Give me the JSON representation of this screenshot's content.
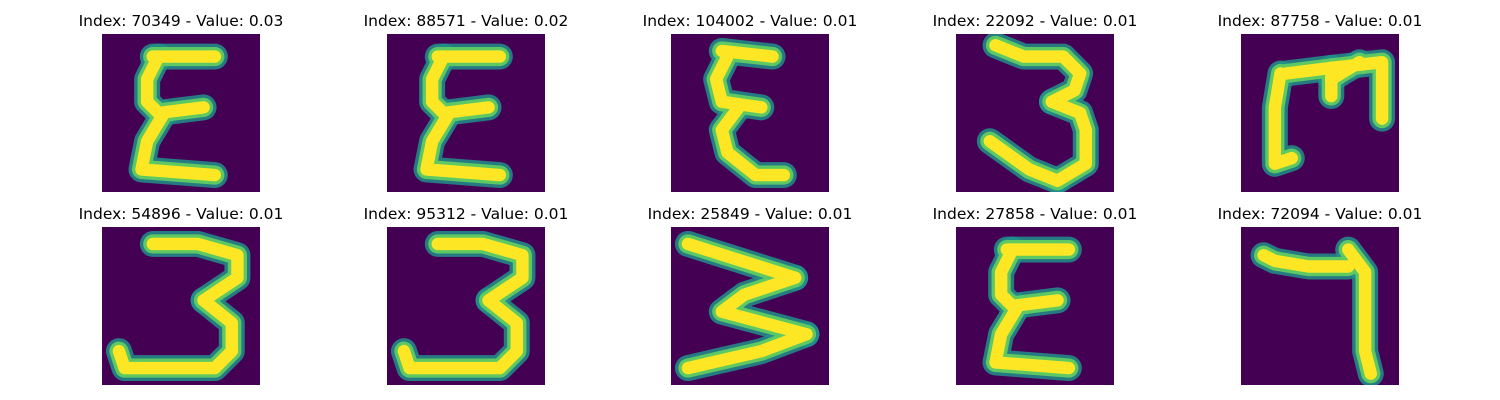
{
  "panels": [
    {
      "title": "Index: 70349 - Value: 0.03",
      "glyph": "epsilon-zigzag"
    },
    {
      "title": "Index: 88571 - Value: 0.02",
      "glyph": "epsilon-zigzag"
    },
    {
      "title": "Index: 104002 - Value: 0.01",
      "glyph": "epsilon-zigzag-narrow"
    },
    {
      "title": "Index: 22092 - Value: 0.01",
      "glyph": "three-slanted"
    },
    {
      "title": "Index: 87758 - Value: 0.01",
      "glyph": "rotated-m"
    },
    {
      "title": "Index: 54896 - Value: 0.01",
      "glyph": "three"
    },
    {
      "title": "Index: 95312 - Value: 0.01",
      "glyph": "three"
    },
    {
      "title": "Index: 25849 - Value: 0.01",
      "glyph": "w-zigzag"
    },
    {
      "title": "Index: 27858 - Value: 0.01",
      "glyph": "epsilon-zigzag"
    },
    {
      "title": "Index: 72094 - Value: 0.01",
      "glyph": "seven-hook"
    }
  ],
  "colors": {
    "background": "#440154",
    "halo": "#21918c",
    "mid": "#5ec962",
    "stroke": "#fde725"
  }
}
